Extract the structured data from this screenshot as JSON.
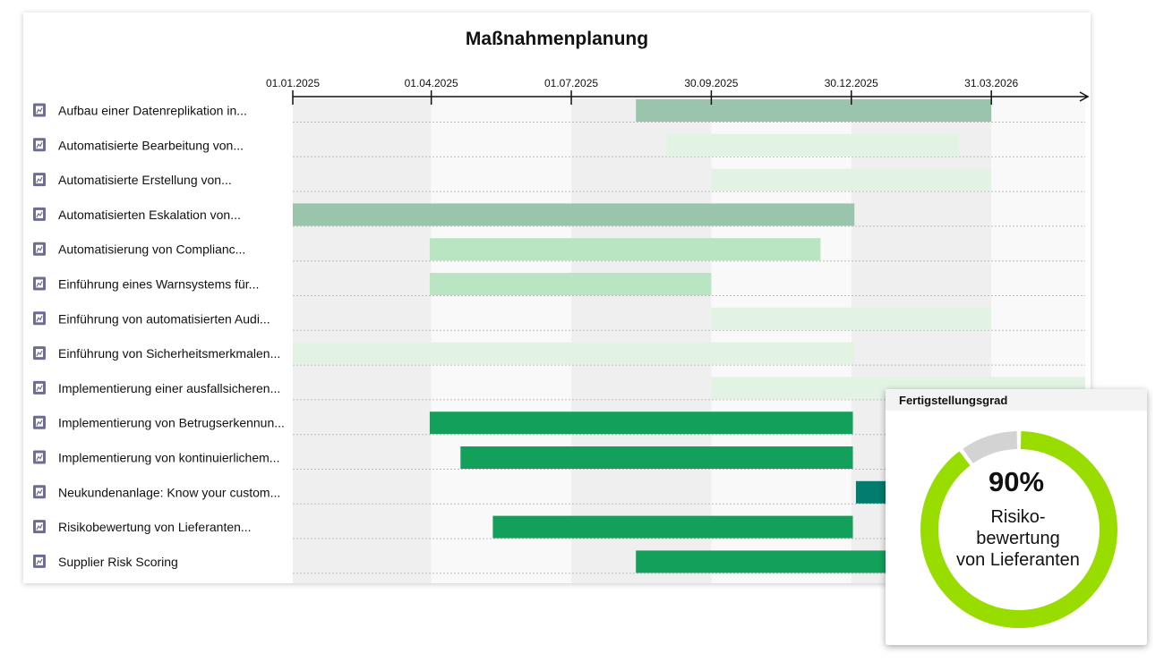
{
  "chart_data": [
    {
      "type": "gantt",
      "title": "Maßnahmenplanung",
      "x_axis": {
        "type": "date",
        "range": [
          "2025-01-01",
          "2026-05-31"
        ],
        "tick_labels": [
          "01.01.2025",
          "01.04.2025",
          "01.07.2025",
          "30.09.2025",
          "30.12.2025",
          "31.03.2026"
        ],
        "tick_dates": [
          "2025-01-01",
          "2025-04-01",
          "2025-07-01",
          "2025-09-30",
          "2025-12-30",
          "2026-03-31"
        ]
      },
      "colors": {
        "palest": "#e2f3e4",
        "pale": "#b9e5c3",
        "muted": "#9ac5ac",
        "strong": "#13a05b",
        "teal": "#027c6c"
      },
      "tasks": [
        {
          "label": "Aufbau einer Datenreplikation in...",
          "start": "2025-08-12",
          "end": "2026-03-31",
          "color": "muted"
        },
        {
          "label": "Automatisierte Bearbeitung von...",
          "start": "2025-09-01",
          "end": "2026-03-10",
          "color": "palest"
        },
        {
          "label": "Automatisierte Erstellung von...",
          "start": "2025-09-30",
          "end": "2026-03-31",
          "color": "palest"
        },
        {
          "label": "Automatisierten Eskalation von...",
          "start": "2025-01-01",
          "end": "2026-01-01",
          "color": "muted"
        },
        {
          "label": "Automatisierung von Complianc...",
          "start": "2025-03-31",
          "end": "2025-12-10",
          "color": "pale"
        },
        {
          "label": "Einführung eines Warnsystems für...",
          "start": "2025-03-31",
          "end": "2025-09-30",
          "color": "pale"
        },
        {
          "label": "Einführung von automatisierten Audi...",
          "start": "2025-09-30",
          "end": "2026-03-31",
          "color": "palest"
        },
        {
          "label": "Einführung von Sicherheitsmerkmalen...",
          "start": "2025-01-01",
          "end": "2026-01-01",
          "color": "palest"
        },
        {
          "label": "Implementierung einer ausfallsicheren...",
          "start": "2025-09-30",
          "end": "2026-05-31",
          "color": "palest"
        },
        {
          "label": "Implementierung von Betrugserkennun...",
          "start": "2025-03-31",
          "end": "2025-12-31",
          "color": "strong"
        },
        {
          "label": "Implementierung von kontinuierlichem...",
          "start": "2025-04-20",
          "end": "2025-12-31",
          "color": "strong"
        },
        {
          "label": "Neukundenanlage: Know your custom...",
          "start": "2026-01-02",
          "end": "2026-02-15",
          "color": "teal"
        },
        {
          "label": "Risikobewertung von Lieferanten...",
          "start": "2025-05-11",
          "end": "2025-12-31",
          "color": "strong"
        },
        {
          "label": "Supplier Risk Scoring",
          "start": "2025-08-12",
          "end": "2026-02-15",
          "color": "strong"
        }
      ]
    },
    {
      "type": "pie",
      "title": "Fertigstellungsgrad",
      "value_text": "90%",
      "label": "Risiko-\nbewertung\nvon Lieferanten",
      "values": [
        90,
        10
      ],
      "colors": [
        "#99dd00",
        "#d3d3d3"
      ]
    }
  ]
}
